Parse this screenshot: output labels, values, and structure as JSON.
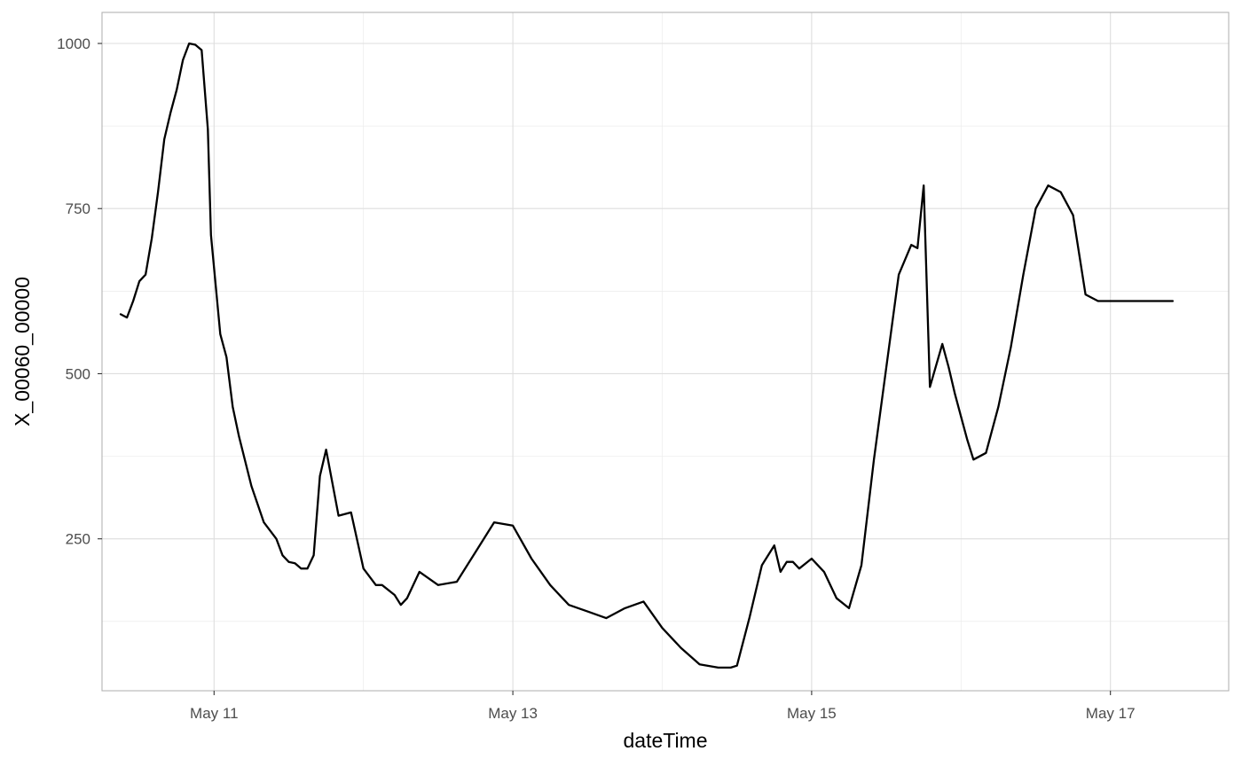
{
  "chart_data": {
    "type": "line",
    "title": "",
    "xlabel": "dateTime",
    "ylabel": "X_00060_00000",
    "x_ticks": [
      {
        "date": "2018-05-11",
        "label": "May 11"
      },
      {
        "date": "2018-05-13",
        "label": "May 13"
      },
      {
        "date": "2018-05-15",
        "label": "May 15"
      },
      {
        "date": "2018-05-17",
        "label": "May 17"
      }
    ],
    "y_ticks": [
      250,
      500,
      750,
      1000
    ],
    "xlim": [
      "2018-05-10T06:00",
      "2018-05-17T19:00"
    ],
    "ylim": [
      20,
      1047
    ],
    "grid": true,
    "line_color": "#000000",
    "series": [
      {
        "x": [
          "2018-05-10T09:00",
          "2018-05-10T10:00",
          "2018-05-10T11:00",
          "2018-05-10T12:00",
          "2018-05-10T13:00",
          "2018-05-10T14:00",
          "2018-05-10T15:00",
          "2018-05-10T16:00",
          "2018-05-10T17:00",
          "2018-05-10T18:00",
          "2018-05-10T19:00",
          "2018-05-10T20:00",
          "2018-05-10T21:00",
          "2018-05-10T22:00",
          "2018-05-10T23:00",
          "2018-05-10T23:30",
          "2018-05-11T01:00",
          "2018-05-11T02:00",
          "2018-05-11T03:00",
          "2018-05-11T04:00",
          "2018-05-11T06:00",
          "2018-05-11T08:00",
          "2018-05-11T10:00",
          "2018-05-11T11:00",
          "2018-05-11T12:00",
          "2018-05-11T13:00",
          "2018-05-11T14:00",
          "2018-05-11T15:00",
          "2018-05-11T16:00",
          "2018-05-11T17:00",
          "2018-05-11T18:00",
          "2018-05-11T20:00",
          "2018-05-11T22:00",
          "2018-05-12T00:00",
          "2018-05-12T02:00",
          "2018-05-12T03:00",
          "2018-05-12T05:00",
          "2018-05-12T06:00",
          "2018-05-12T07:00",
          "2018-05-12T09:00",
          "2018-05-12T12:00",
          "2018-05-12T15:00",
          "2018-05-12T18:00",
          "2018-05-12T21:00",
          "2018-05-13T00:00",
          "2018-05-13T03:00",
          "2018-05-13T06:00",
          "2018-05-13T09:00",
          "2018-05-13T12:00",
          "2018-05-13T15:00",
          "2018-05-13T18:00",
          "2018-05-13T21:00",
          "2018-05-14T00:00",
          "2018-05-14T03:00",
          "2018-05-14T06:00",
          "2018-05-14T09:00",
          "2018-05-14T11:00",
          "2018-05-14T12:00",
          "2018-05-14T14:00",
          "2018-05-14T16:00",
          "2018-05-14T18:00",
          "2018-05-14T19:00",
          "2018-05-14T20:00",
          "2018-05-14T21:00",
          "2018-05-14T22:00",
          "2018-05-15T00:00",
          "2018-05-15T02:00",
          "2018-05-15T04:00",
          "2018-05-15T06:00",
          "2018-05-15T08:00",
          "2018-05-15T10:00",
          "2018-05-15T12:00",
          "2018-05-15T14:00",
          "2018-05-15T16:00",
          "2018-05-15T17:00",
          "2018-05-15T18:00",
          "2018-05-15T19:00",
          "2018-05-15T21:00",
          "2018-05-15T22:00",
          "2018-05-15T23:00",
          "2018-05-16T00:00",
          "2018-05-16T01:00",
          "2018-05-16T02:00",
          "2018-05-16T04:00",
          "2018-05-16T06:00",
          "2018-05-16T08:00",
          "2018-05-16T10:00",
          "2018-05-16T12:00",
          "2018-05-16T14:00",
          "2018-05-16T16:00",
          "2018-05-16T18:00",
          "2018-05-16T20:00",
          "2018-05-16T22:00",
          "2018-05-17T00:00",
          "2018-05-17T02:00",
          "2018-05-17T03:00",
          "2018-05-17T04:00",
          "2018-05-17T05:00",
          "2018-05-17T06:00",
          "2018-05-17T07:00",
          "2018-05-17T08:00",
          "2018-05-17T09:00",
          "2018-05-17T10:00"
        ],
        "y": [
          590,
          585,
          610,
          640,
          650,
          705,
          775,
          855,
          895,
          930,
          975,
          1000,
          998,
          990,
          870,
          710,
          560,
          525,
          450,
          405,
          330,
          275,
          250,
          225,
          215,
          213,
          205,
          205,
          225,
          345,
          385,
          285,
          290,
          205,
          180,
          180,
          165,
          150,
          160,
          200,
          180,
          185,
          230,
          275,
          270,
          220,
          180,
          150,
          140,
          130,
          145,
          155,
          115,
          85,
          60,
          55,
          55,
          58,
          130,
          210,
          240,
          200,
          215,
          215,
          205,
          220,
          200,
          160,
          145,
          210,
          370,
          510,
          650,
          695,
          690,
          785,
          480,
          545,
          510,
          470,
          435,
          400,
          370,
          380,
          450,
          540,
          650,
          750,
          785,
          775,
          740,
          620,
          610,
          610,
          610,
          610,
          610,
          610,
          610,
          610,
          610,
          610,
          610
        ]
      }
    ]
  }
}
